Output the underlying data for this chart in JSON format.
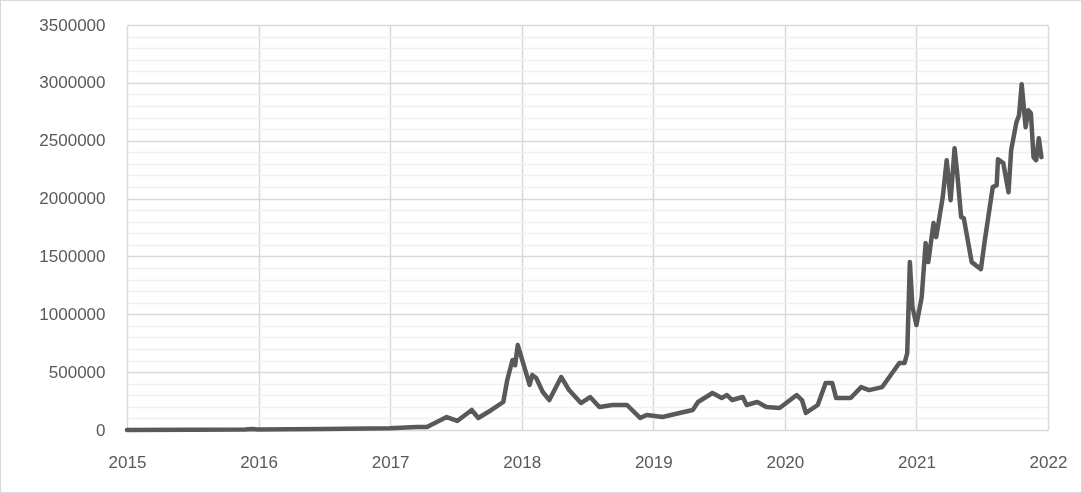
{
  "chart_data": {
    "type": "line",
    "x": [
      2015.0,
      2015.5,
      2015.9,
      2015.95,
      2016.0,
      2016.5,
      2017.0,
      2017.2,
      2017.28,
      2017.43,
      2017.51,
      2017.62,
      2017.67,
      2017.77,
      2017.86,
      2017.89,
      2017.93,
      2017.95,
      2017.97,
      2018.02,
      2018.06,
      2018.08,
      2018.11,
      2018.16,
      2018.21,
      2018.3,
      2018.36,
      2018.45,
      2018.52,
      2018.59,
      2018.69,
      2018.8,
      2018.9,
      2018.95,
      2019.07,
      2019.2,
      2019.3,
      2019.34,
      2019.45,
      2019.52,
      2019.56,
      2019.6,
      2019.68,
      2019.71,
      2019.79,
      2019.86,
      2019.96,
      2020.02,
      2020.09,
      2020.13,
      2020.16,
      2020.25,
      2020.31,
      2020.36,
      2020.39,
      2020.5,
      2020.58,
      2020.64,
      2020.74,
      2020.87,
      2020.91,
      2020.93,
      2020.95,
      2020.97,
      2021.0,
      2021.04,
      2021.07,
      2021.09,
      2021.13,
      2021.15,
      2021.2,
      2021.23,
      2021.26,
      2021.29,
      2021.31,
      2021.34,
      2021.36,
      2021.39,
      2021.42,
      2021.49,
      2021.52,
      2021.58,
      2021.61,
      2021.62,
      2021.66,
      2021.7,
      2021.72,
      2021.76,
      2021.78,
      2021.8,
      2021.83,
      2021.85,
      2021.87,
      2021.89,
      2021.91,
      2021.93,
      2021.95
    ],
    "series": [
      {
        "color": "#595959",
        "values": [
          0,
          2000,
          4000,
          8000,
          4000,
          9000,
          15000,
          25000,
          26000,
          112000,
          78000,
          173000,
          104000,
          173000,
          242000,
          432000,
          605000,
          560000,
          734000,
          544000,
          389000,
          475000,
          449000,
          328000,
          259000,
          458000,
          345000,
          233000,
          285000,
          199000,
          216000,
          216000,
          104000,
          130000,
          112000,
          147000,
          173000,
          242000,
          320000,
          276000,
          302000,
          259000,
          285000,
          216000,
          242000,
          199000,
          190000,
          242000,
          302000,
          259000,
          147000,
          216000,
          406000,
          406000,
          276000,
          276000,
          371000,
          345000,
          371000,
          579000,
          579000,
          665000,
          1451000,
          1062000,
          907000,
          1149000,
          1615000,
          1451000,
          1788000,
          1667000,
          2012000,
          2332000,
          1986000,
          2435000,
          2219000,
          1840000,
          1831000,
          1641000,
          1451000,
          1390000,
          1641000,
          2099000,
          2116000,
          2340000,
          2306000,
          2055000,
          2418000,
          2660000,
          2720000,
          2988000,
          2617000,
          2764000,
          2738000,
          2358000,
          2332000,
          2522000,
          2358000
        ]
      }
    ],
    "xlim": [
      2015,
      2022
    ],
    "xticks": [
      2015,
      2016,
      2017,
      2018,
      2019,
      2020,
      2021,
      2022
    ],
    "ylim": [
      0,
      3500000
    ],
    "yticks": [
      0,
      {
        "value": 100000,
        "label": null
      },
      {
        "value": 200000,
        "label": null
      },
      {
        "value": 300000,
        "label": null
      },
      {
        "value": 400000,
        "label": null
      },
      500000,
      {
        "value": 600000,
        "label": null
      },
      {
        "value": 700000,
        "label": null
      },
      {
        "value": 800000,
        "label": null
      },
      {
        "value": 900000,
        "label": null
      },
      1000000,
      {
        "value": 1100000,
        "label": null
      },
      {
        "value": 1200000,
        "label": null
      },
      {
        "value": 1300000,
        "label": null
      },
      {
        "value": 1400000,
        "label": null
      },
      1500000,
      {
        "value": 1600000,
        "label": null
      },
      {
        "value": 1700000,
        "label": null
      },
      {
        "value": 1800000,
        "label": null
      },
      {
        "value": 1900000,
        "label": null
      },
      2000000,
      {
        "value": 2100000,
        "label": null
      },
      {
        "value": 2200000,
        "label": null
      },
      {
        "value": 2300000,
        "label": null
      },
      {
        "value": 2400000,
        "label": null
      },
      2500000,
      {
        "value": 2600000,
        "label": null
      },
      {
        "value": 2700000,
        "label": null
      },
      {
        "value": 2800000,
        "label": null
      },
      {
        "value": 2900000,
        "label": null
      },
      3000000,
      {
        "value": 3100000,
        "label": null
      },
      {
        "value": 3200000,
        "label": null
      },
      {
        "value": 3300000,
        "label": null
      },
      {
        "value": 3400000,
        "label": null
      },
      3500000
    ],
    "grid": true,
    "line_style": "solid",
    "marker": "none"
  }
}
